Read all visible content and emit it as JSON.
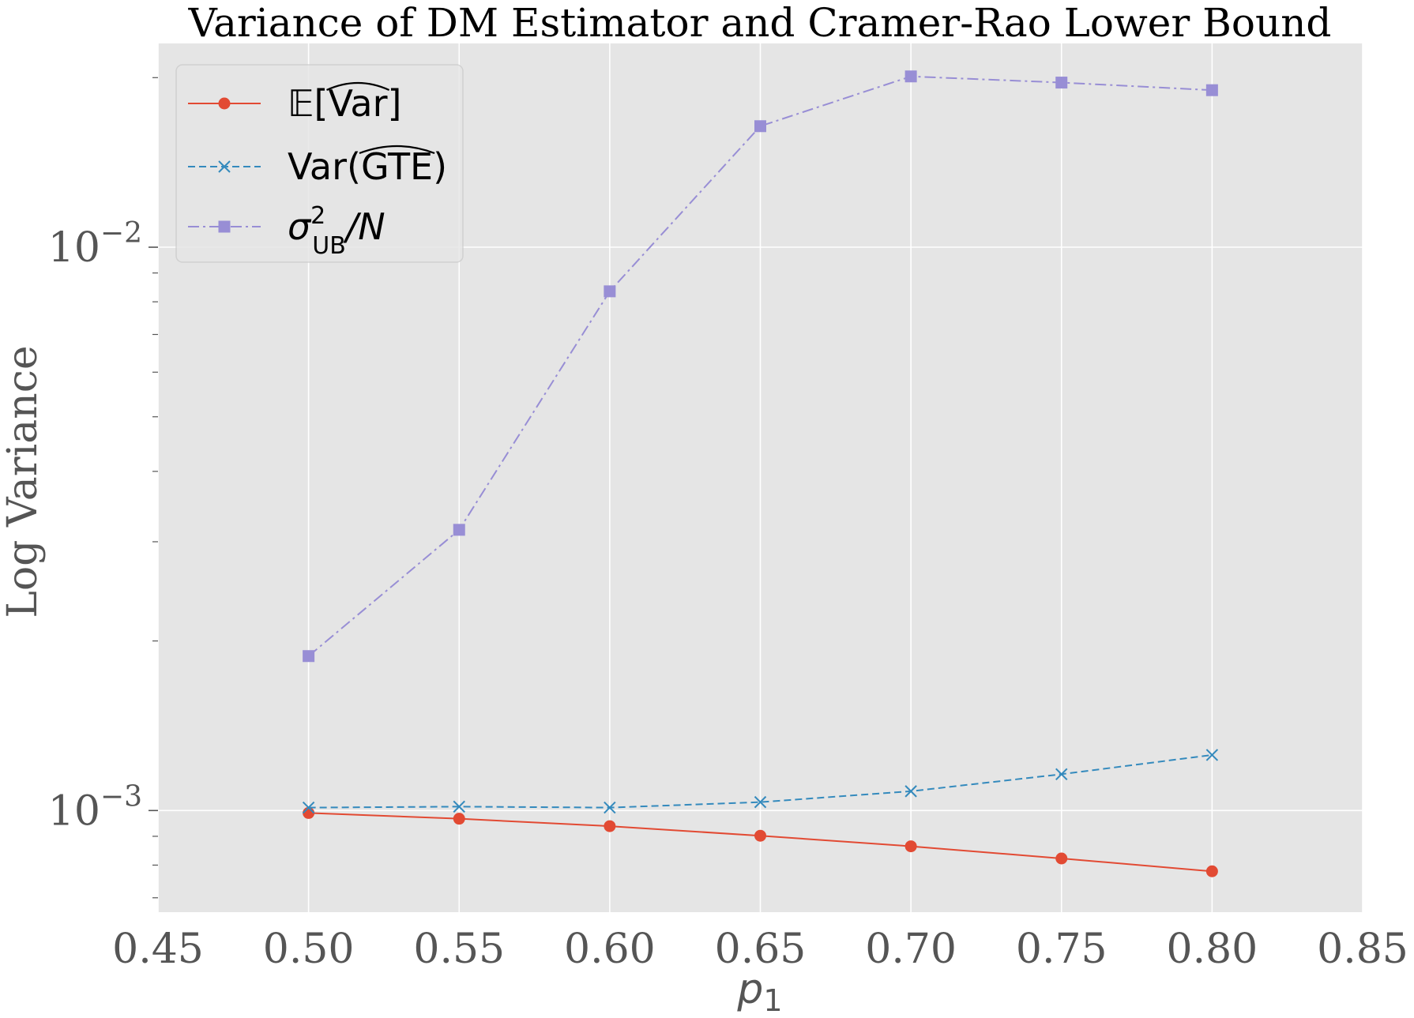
{
  "chart_data": {
    "type": "line",
    "title": "Variance of DM Estimator and Cramer-Rao Lower Bound",
    "xlabel": "p",
    "xlabel_subscript": "1",
    "ylabel": "Log Variance",
    "yscale": "log",
    "xlim": [
      0.45,
      0.85
    ],
    "ylim": [
      0.00066,
      0.023
    ],
    "grid": true,
    "legend_position": "top-left",
    "x_ticks": [
      "0.45",
      "0.50",
      "0.55",
      "0.60",
      "0.65",
      "0.70",
      "0.75",
      "0.80",
      "0.85"
    ],
    "y_major_ticks": [
      {
        "value": 0.001,
        "base": "10",
        "exp": "−3"
      },
      {
        "value": 0.01,
        "base": "10",
        "exp": "−2"
      }
    ],
    "x": [
      0.5,
      0.55,
      0.6,
      0.65,
      0.7,
      0.75,
      0.8
    ],
    "series": [
      {
        "name": "E[Var-hat]",
        "legend": {
          "prefix": "𝔼[",
          "hat": "Var",
          "suffix": "]"
        },
        "color": "#E24A33",
        "marker": "circle",
        "linestyle": "solid",
        "values": [
          0.00099,
          0.000967,
          0.000938,
          0.000902,
          0.000864,
          0.000822,
          0.00078
        ]
      },
      {
        "name": "Var(GTE-hat)",
        "legend": {
          "prefix": "Var(",
          "hat": "GTE",
          "suffix": ")"
        },
        "color": "#348ABD",
        "marker": "x",
        "linestyle": "dashed",
        "values": [
          0.001012,
          0.001016,
          0.001012,
          0.001035,
          0.001082,
          0.00116,
          0.001255
        ]
      },
      {
        "name": "sigma_UB^2 / N",
        "legend": {
          "sigma": "σ",
          "sup": "2",
          "sub": "UB",
          "suffix": "/N"
        },
        "color": "#988ED5",
        "marker": "square",
        "linestyle": "dashdot",
        "values": [
          0.00188,
          0.00315,
          0.00835,
          0.0164,
          0.0201,
          0.0196,
          0.019
        ]
      }
    ]
  }
}
